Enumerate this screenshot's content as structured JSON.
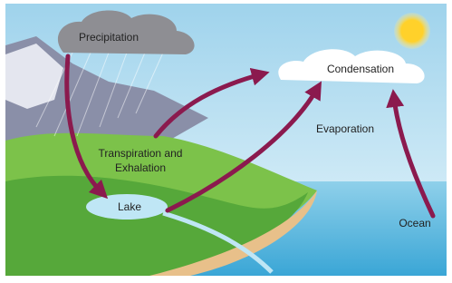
{
  "nodes": [
    {
      "label": "Precipitation"
    },
    {
      "label": "Condensation"
    },
    {
      "label": "Evaporation"
    },
    {
      "label_lines": [
        "Transpiration and",
        "Exhalation"
      ]
    },
    {
      "label": "Lake"
    },
    {
      "label": "Ocean"
    }
  ]
}
